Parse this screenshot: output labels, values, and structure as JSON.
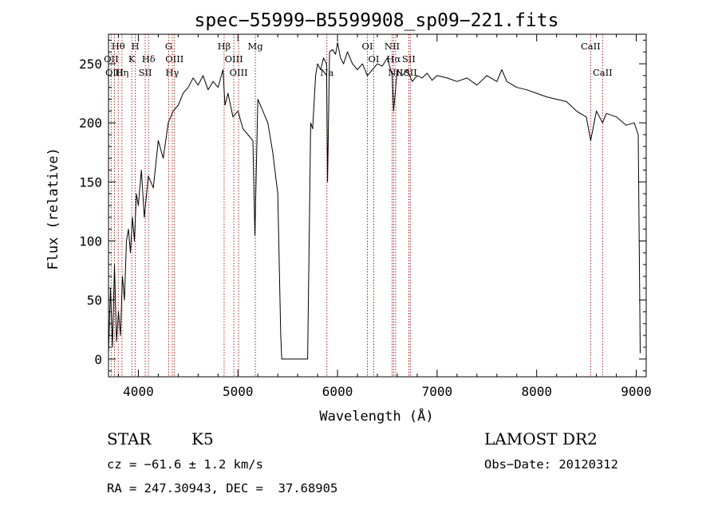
{
  "chart_data": {
    "type": "line",
    "title": "spec−55999−B5599908_sp09−221.fits",
    "xlabel": "Wavelength (Å)",
    "ylabel": "Flux (relative)",
    "xlim": [
      3700,
      9100
    ],
    "ylim": [
      -15,
      275
    ],
    "xticks": [
      4000,
      5000,
      6000,
      7000,
      8000,
      9000
    ],
    "xtick_labels": [
      "4000",
      "5000",
      "6000",
      "7000",
      "8000",
      "9000"
    ],
    "yticks": [
      0,
      50,
      100,
      150,
      200,
      250
    ],
    "ytick_labels": [
      "0",
      "50",
      "100",
      "150",
      "200",
      "250"
    ],
    "grid": false,
    "series": [
      {
        "name": "flux",
        "x": [
          3700,
          3720,
          3740,
          3760,
          3780,
          3800,
          3820,
          3840,
          3860,
          3880,
          3900,
          3920,
          3940,
          3960,
          3980,
          4000,
          4030,
          4060,
          4100,
          4150,
          4200,
          4250,
          4300,
          4350,
          4400,
          4450,
          4500,
          4550,
          4600,
          4650,
          4700,
          4750,
          4800,
          4850,
          4870,
          4900,
          4950,
          5000,
          5050,
          5100,
          5150,
          5170,
          5200,
          5250,
          5300,
          5350,
          5400,
          5430,
          5440,
          5500,
          5600,
          5700,
          5720,
          5730,
          5750,
          5780,
          5800,
          5830,
          5860,
          5890,
          5900,
          5920,
          5950,
          5980,
          6000,
          6030,
          6060,
          6100,
          6150,
          6200,
          6250,
          6300,
          6350,
          6400,
          6450,
          6500,
          6550,
          6563,
          6600,
          6650,
          6700,
          6750,
          6800,
          6850,
          6900,
          6950,
          7000,
          7100,
          7200,
          7300,
          7400,
          7500,
          7600,
          7650,
          7700,
          7800,
          7900,
          8000,
          8100,
          8200,
          8300,
          8400,
          8498,
          8542,
          8600,
          8662,
          8700,
          8800,
          8900,
          8980,
          9000,
          9020,
          9040
        ],
        "y": [
          5,
          60,
          10,
          80,
          15,
          40,
          20,
          70,
          50,
          100,
          110,
          90,
          120,
          100,
          140,
          130,
          160,
          120,
          155,
          145,
          185,
          170,
          200,
          210,
          215,
          225,
          230,
          238,
          232,
          240,
          228,
          235,
          230,
          245,
          215,
          225,
          205,
          210,
          195,
          190,
          185,
          105,
          220,
          210,
          200,
          175,
          140,
          20,
          0,
          0,
          0,
          0,
          130,
          200,
          195,
          240,
          250,
          245,
          255,
          250,
          150,
          260,
          262,
          258,
          268,
          255,
          250,
          260,
          250,
          245,
          250,
          240,
          245,
          250,
          248,
          255,
          240,
          210,
          245,
          240,
          245,
          235,
          240,
          238,
          242,
          236,
          240,
          238,
          235,
          238,
          232,
          240,
          235,
          245,
          235,
          230,
          228,
          225,
          222,
          220,
          218,
          210,
          205,
          185,
          210,
          200,
          208,
          205,
          198,
          200,
          195,
          190,
          5
        ]
      }
    ],
    "line_markers": [
      {
        "label": "Hθ",
        "x": 3798
      },
      {
        "label": "H",
        "x": 3969
      },
      {
        "label": "G",
        "x": 4305
      },
      {
        "label": "Hβ",
        "x": 4861
      },
      {
        "label": "Mg",
        "x": 5175
      },
      {
        "label": "OI",
        "x": 6300
      },
      {
        "label": "NII",
        "x": 6548
      },
      {
        "label": "CaII",
        "x": 8542
      },
      {
        "label": "OII",
        "x": 3727
      },
      {
        "label": "K",
        "x": 3934
      },
      {
        "label": "Hδ",
        "x": 4102
      },
      {
        "label": "OIII",
        "x": 4363
      },
      {
        "label": "OIII",
        "x": 4959
      },
      {
        "label": "OI",
        "x": 6364
      },
      {
        "label": "Hα",
        "x": 6563
      },
      {
        "label": "SII",
        "x": 6716
      },
      {
        "label": "OIII",
        "x": 3760
      },
      {
        "label": "Hη",
        "x": 3835
      },
      {
        "label": "SII",
        "x": 4069
      },
      {
        "label": "Hγ",
        "x": 4340
      },
      {
        "label": "OIII",
        "x": 5007
      },
      {
        "label": "Na",
        "x": 5893
      },
      {
        "label": "NII",
        "x": 6583
      },
      {
        "label": "SII",
        "x": 6731
      },
      {
        "label": "CaII",
        "x": 8662
      }
    ]
  },
  "info": {
    "class": "STAR",
    "subclass": "K5",
    "survey": "LAMOST DR2",
    "cz": "cz = −61.6 ± 1.2 km/s",
    "obs_date": "Obs−Date: 20120312",
    "coords": "RA = 247.30943, DEC =  37.68905"
  },
  "colors": {
    "spectrum": "#000000",
    "marker": "#b22222",
    "axes": "#000000"
  }
}
